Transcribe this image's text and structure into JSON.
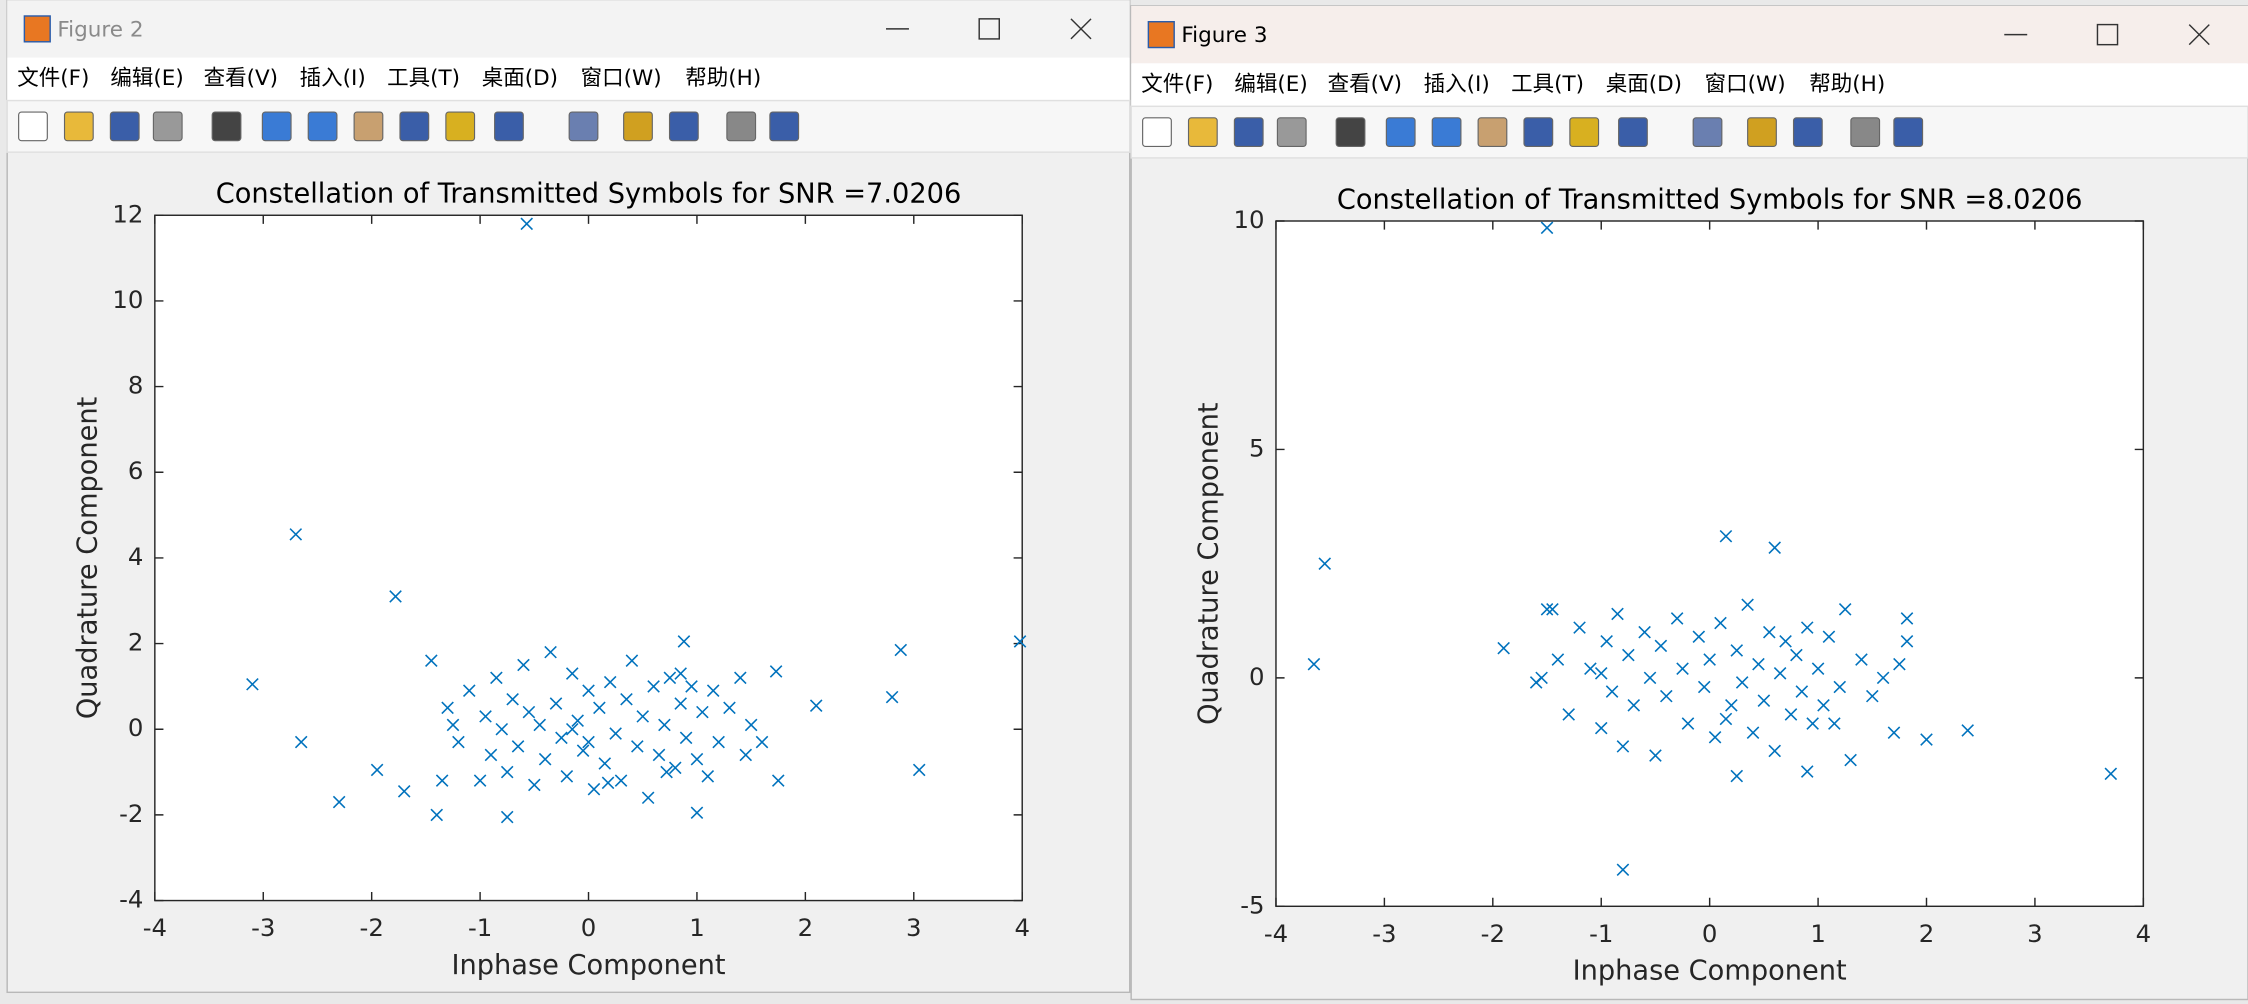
{
  "windows": [
    {
      "title": "Figure 2",
      "menu": [
        "文件(F)",
        "编辑(E)",
        "查看(V)",
        "插入(I)",
        "工具(T)",
        "桌面(D)",
        "窗口(W)",
        "帮助(H)"
      ]
    },
    {
      "title": "Figure 3",
      "menu": [
        "文件(F)",
        "编辑(E)",
        "查看(V)",
        "插入(I)",
        "工具(T)",
        "桌面(D)",
        "窗口(W)",
        "帮助(H)"
      ]
    }
  ],
  "chart_data": [
    {
      "type": "scatter",
      "title": "Constellation of Transmitted Symbols for SNR =7.0206",
      "x_label": "Inphase Component",
      "y_label": "Quadrature Component",
      "color": "#0072bd",
      "marker": "x",
      "xlim": [
        -4,
        4
      ],
      "ylim": [
        -4,
        12
      ],
      "xticks": [
        -4,
        -3,
        -2,
        -1,
        0,
        1,
        2,
        3,
        4
      ],
      "yticks": [
        -4,
        -2,
        0,
        2,
        4,
        6,
        8,
        10,
        12
      ],
      "x": [
        -1.3,
        -1.2,
        -1.1,
        -1.0,
        -0.95,
        -0.9,
        -0.85,
        -0.8,
        -0.75,
        -0.7,
        -0.65,
        -0.6,
        -0.55,
        -0.5,
        -0.45,
        -0.4,
        -0.35,
        -0.3,
        -0.25,
        -0.2,
        -0.15,
        -0.1,
        -0.05,
        0.0,
        0.05,
        0.1,
        0.15,
        0.2,
        0.25,
        0.3,
        0.35,
        0.4,
        0.45,
        0.5,
        0.55,
        0.6,
        0.65,
        0.7,
        0.75,
        0.8,
        0.85,
        0.9,
        0.95,
        1.0,
        1.05,
        1.1,
        1.15,
        1.2,
        1.3,
        1.4,
        1.45,
        1.5,
        1.6,
        -1.35,
        -1.25,
        0.18,
        0.72,
        -0.15,
        0.0,
        0.85,
        -0.57,
        -2.7,
        -1.78,
        -3.1,
        -2.65,
        -2.3,
        -1.95,
        2.1,
        2.8,
        2.88,
        3.05,
        3.98,
        -1.45,
        1.73,
        1.75,
        0.88,
        -0.75,
        1.0,
        -1.4,
        -1.7
      ],
      "y": [
        0.5,
        -0.3,
        0.9,
        -1.2,
        0.3,
        -0.6,
        1.2,
        0.0,
        -1.0,
        0.7,
        -0.4,
        1.5,
        0.4,
        -1.3,
        0.1,
        -0.7,
        1.8,
        0.6,
        -0.2,
        -1.1,
        1.3,
        0.2,
        -0.5,
        0.9,
        -1.4,
        0.5,
        -0.8,
        1.1,
        -0.1,
        -1.2,
        0.7,
        1.6,
        -0.4,
        0.3,
        -1.6,
        1.0,
        -0.6,
        0.1,
        1.2,
        -0.9,
        0.6,
        -0.2,
        1.0,
        -0.7,
        0.4,
        -1.1,
        0.9,
        -0.3,
        0.5,
        1.2,
        -0.6,
        0.1,
        -0.3,
        -1.2,
        0.1,
        -1.25,
        -1.0,
        0.0,
        -0.3,
        1.3,
        11.8,
        4.55,
        3.1,
        1.05,
        -0.3,
        -1.7,
        -0.95,
        0.55,
        0.75,
        1.85,
        -0.95,
        2.05,
        1.6,
        1.35,
        -1.2,
        2.05,
        -2.05,
        -1.95,
        -2.0,
        -1.45
      ]
    },
    {
      "type": "scatter",
      "title": "Constellation of Transmitted Symbols for SNR =8.0206",
      "x_label": "Inphase Component",
      "y_label": "Quadrature Component",
      "color": "#0072bd",
      "marker": "x",
      "xlim": [
        -4,
        4
      ],
      "ylim": [
        -5,
        10
      ],
      "xticks": [
        -4,
        -3,
        -2,
        -1,
        0,
        1,
        2,
        3,
        4
      ],
      "yticks": [
        -5,
        0,
        5,
        10
      ],
      "x": [
        -1.6,
        -1.5,
        -1.4,
        -1.3,
        -1.2,
        -1.1,
        -1.0,
        -0.95,
        -0.9,
        -0.85,
        -0.8,
        -0.75,
        -0.7,
        -0.6,
        -0.55,
        -0.5,
        -0.45,
        -0.4,
        -0.3,
        -0.25,
        -0.2,
        -0.1,
        -0.05,
        0.0,
        0.05,
        0.1,
        0.2,
        0.25,
        0.3,
        0.35,
        0.4,
        0.45,
        0.5,
        0.55,
        0.6,
        0.65,
        0.7,
        0.75,
        0.8,
        0.85,
        0.9,
        0.95,
        1.0,
        1.05,
        1.1,
        1.2,
        1.25,
        1.3,
        1.4,
        1.5,
        1.6,
        1.7,
        1.75,
        1.82,
        -1.55,
        -1.0,
        0.15,
        1.15,
        -1.5,
        -3.55,
        -3.65,
        -0.8,
        3.7,
        2.38,
        2.0,
        -1.9,
        0.15,
        0.6,
        1.82,
        0.25,
        0.9,
        -1.45
      ],
      "y": [
        -0.1,
        1.5,
        0.4,
        -0.8,
        1.1,
        0.2,
        -1.1,
        0.8,
        -0.3,
        1.4,
        -1.5,
        0.5,
        -0.6,
        1.0,
        0.0,
        -1.7,
        0.7,
        -0.4,
        1.3,
        0.2,
        -1.0,
        0.9,
        -0.2,
        0.4,
        -1.3,
        1.2,
        -0.6,
        0.6,
        -0.1,
        1.6,
        -1.2,
        0.3,
        -0.5,
        1.0,
        -1.6,
        0.1,
        0.8,
        -0.8,
        0.5,
        -0.3,
        1.1,
        -1.0,
        0.2,
        -0.6,
        0.9,
        -0.2,
        1.5,
        -1.8,
        0.4,
        -0.4,
        0.0,
        -1.2,
        0.3,
        0.8,
        0.0,
        0.1,
        -0.9,
        -1.0,
        9.85,
        2.5,
        0.3,
        -4.2,
        -2.1,
        -1.15,
        -1.35,
        0.65,
        3.1,
        2.85,
        1.3,
        -2.15,
        -2.05,
        1.5
      ]
    }
  ]
}
